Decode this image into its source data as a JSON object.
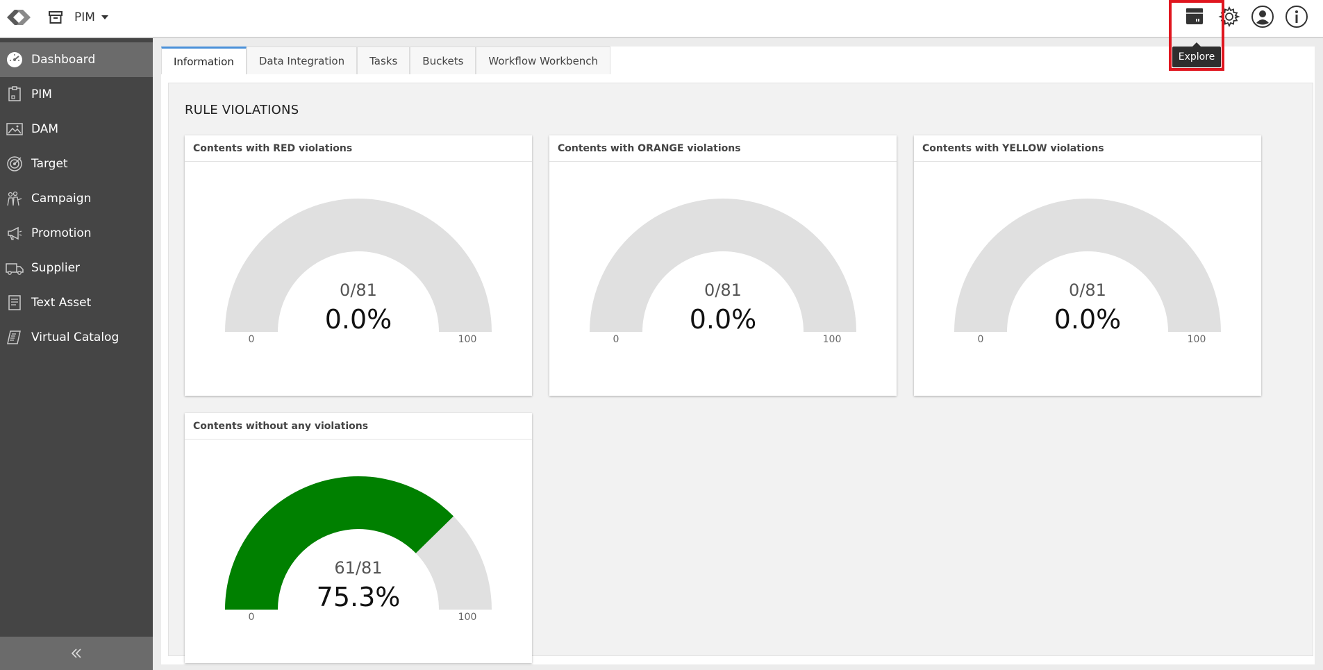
{
  "topbar": {
    "module_label": "PIM",
    "icons": [
      "explore-icon",
      "gear-icon",
      "user-icon",
      "info-icon"
    ],
    "tooltip": "Explore",
    "highlight_color": "#e0161f"
  },
  "sidebar": {
    "items": [
      {
        "label": "Dashboard",
        "icon": "dashboard-icon",
        "active": true
      },
      {
        "label": "PIM",
        "icon": "pim-icon"
      },
      {
        "label": "DAM",
        "icon": "dam-icon"
      },
      {
        "label": "Target",
        "icon": "target-icon"
      },
      {
        "label": "Campaign",
        "icon": "campaign-icon"
      },
      {
        "label": "Promotion",
        "icon": "promotion-icon"
      },
      {
        "label": "Supplier",
        "icon": "supplier-icon"
      },
      {
        "label": "Text Asset",
        "icon": "text-asset-icon"
      },
      {
        "label": "Virtual Catalog",
        "icon": "virtual-catalog-icon"
      }
    ],
    "collapse_icon": "double-chevron-left-icon"
  },
  "tabs": [
    {
      "label": "Information",
      "active": true
    },
    {
      "label": "Data Integration"
    },
    {
      "label": "Tasks"
    },
    {
      "label": "Buckets"
    },
    {
      "label": "Workflow Workbench"
    }
  ],
  "section_title": "RULE VIOLATIONS",
  "gauges": [
    {
      "title": "Contents with RED violations",
      "count": "0/81",
      "percent_label": "0.0%",
      "fraction": 0,
      "min": "0",
      "max": "100",
      "fill_color": "#e0161f"
    },
    {
      "title": "Contents with ORANGE violations",
      "count": "0/81",
      "percent_label": "0.0%",
      "fraction": 0,
      "min": "0",
      "max": "100",
      "fill_color": "#f28c00"
    },
    {
      "title": "Contents with YELLOW violations",
      "count": "0/81",
      "percent_label": "0.0%",
      "fraction": 0,
      "min": "0",
      "max": "100",
      "fill_color": "#f2d300"
    },
    {
      "title": "Contents without any violations",
      "count": "61/81",
      "percent_label": "75.3%",
      "fraction": 0.753,
      "min": "0",
      "max": "100",
      "fill_color": "#008000"
    }
  ],
  "colors": {
    "gauge_track": "#e0e0e0",
    "sidebar_bg": "#454545",
    "sidebar_active": "#6b6b6b",
    "tab_accent": "#4a90d9"
  }
}
